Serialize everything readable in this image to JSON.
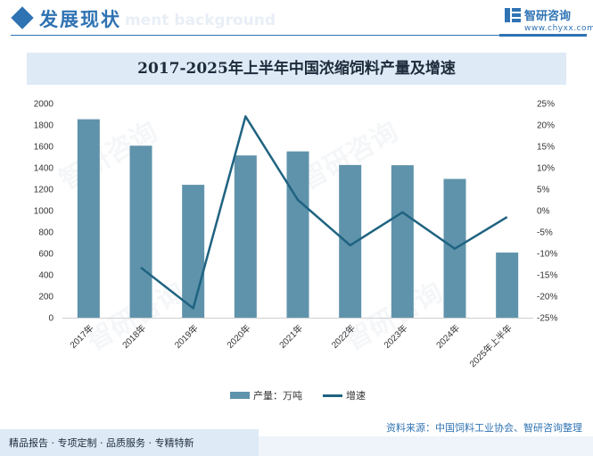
{
  "header": {
    "title": "发展现状",
    "ghost_text": "ment background",
    "brand": "智研咨询",
    "url": "www.chyxx.com",
    "logo_icon": "chyxx-logo-icon"
  },
  "watermark": {
    "text": "智研咨询"
  },
  "colors": {
    "accent": "#2f73b3",
    "bar": "#5f93ab",
    "line": "#1f6381",
    "title_band": "#deeaf6"
  },
  "chart_data": {
    "type": "bar+line",
    "title": "2017-2025年上半年中国浓缩饲料产量及增速",
    "categories": [
      "2017年",
      "2018年",
      "2019年",
      "2020年",
      "2021年",
      "2022年",
      "2023年",
      "2024年",
      "2025年上半年"
    ],
    "series": [
      {
        "name": "产量：万吨",
        "type": "bar",
        "axis": "left",
        "values": [
          1853,
          1606,
          1241,
          1515,
          1553,
          1426,
          1424,
          1296,
          608
        ]
      },
      {
        "name": "增速",
        "type": "line",
        "axis": "right",
        "values": [
          null,
          -13.3,
          -22.8,
          22.0,
          2.5,
          -8.1,
          -0.4,
          -8.9,
          -1.5
        ]
      }
    ],
    "y_left": {
      "min": 0,
      "max": 2000,
      "ticks": [
        "0",
        "200",
        "400",
        "600",
        "800",
        "1000",
        "1200",
        "1400",
        "1600",
        "1800",
        "2000"
      ]
    },
    "y_right": {
      "min": -25,
      "max": 25,
      "ticks": [
        "-25%",
        "-20%",
        "-15%",
        "-10%",
        "-5%",
        "0%",
        "5%",
        "10%",
        "15%",
        "20%",
        "25%"
      ]
    },
    "grid": false,
    "legend_position": "bottom"
  },
  "source": "资料来源：中国饲料工业协会、智研咨询整理",
  "footer": {
    "slogan": "精品报告 · 专项定制 · 品质服务 · 专精特新"
  }
}
